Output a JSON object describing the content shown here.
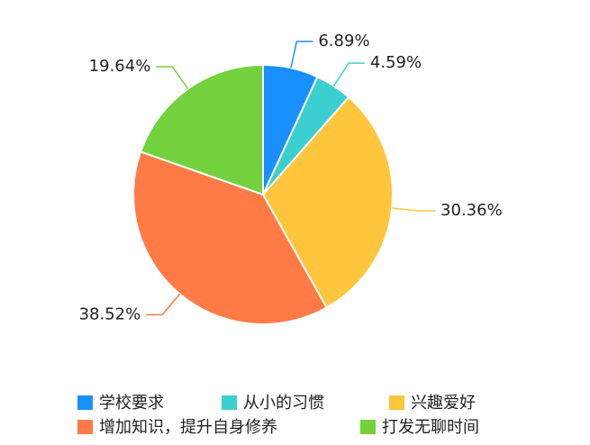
{
  "chart_data": {
    "type": "pie",
    "categories": [
      "学校要求",
      "从小的习惯",
      "兴趣爱好",
      "增加知识，提升自身修养",
      "打发无聊时间"
    ],
    "values": [
      6.89,
      4.59,
      30.36,
      38.52,
      19.64
    ],
    "value_labels": [
      "6.89%",
      "4.59%",
      "30.36%",
      "38.52%",
      "19.64%"
    ],
    "colors": [
      "#1890ff",
      "#3ccfcf",
      "#ffc53d",
      "#ff7a45",
      "#73d13d"
    ]
  }
}
